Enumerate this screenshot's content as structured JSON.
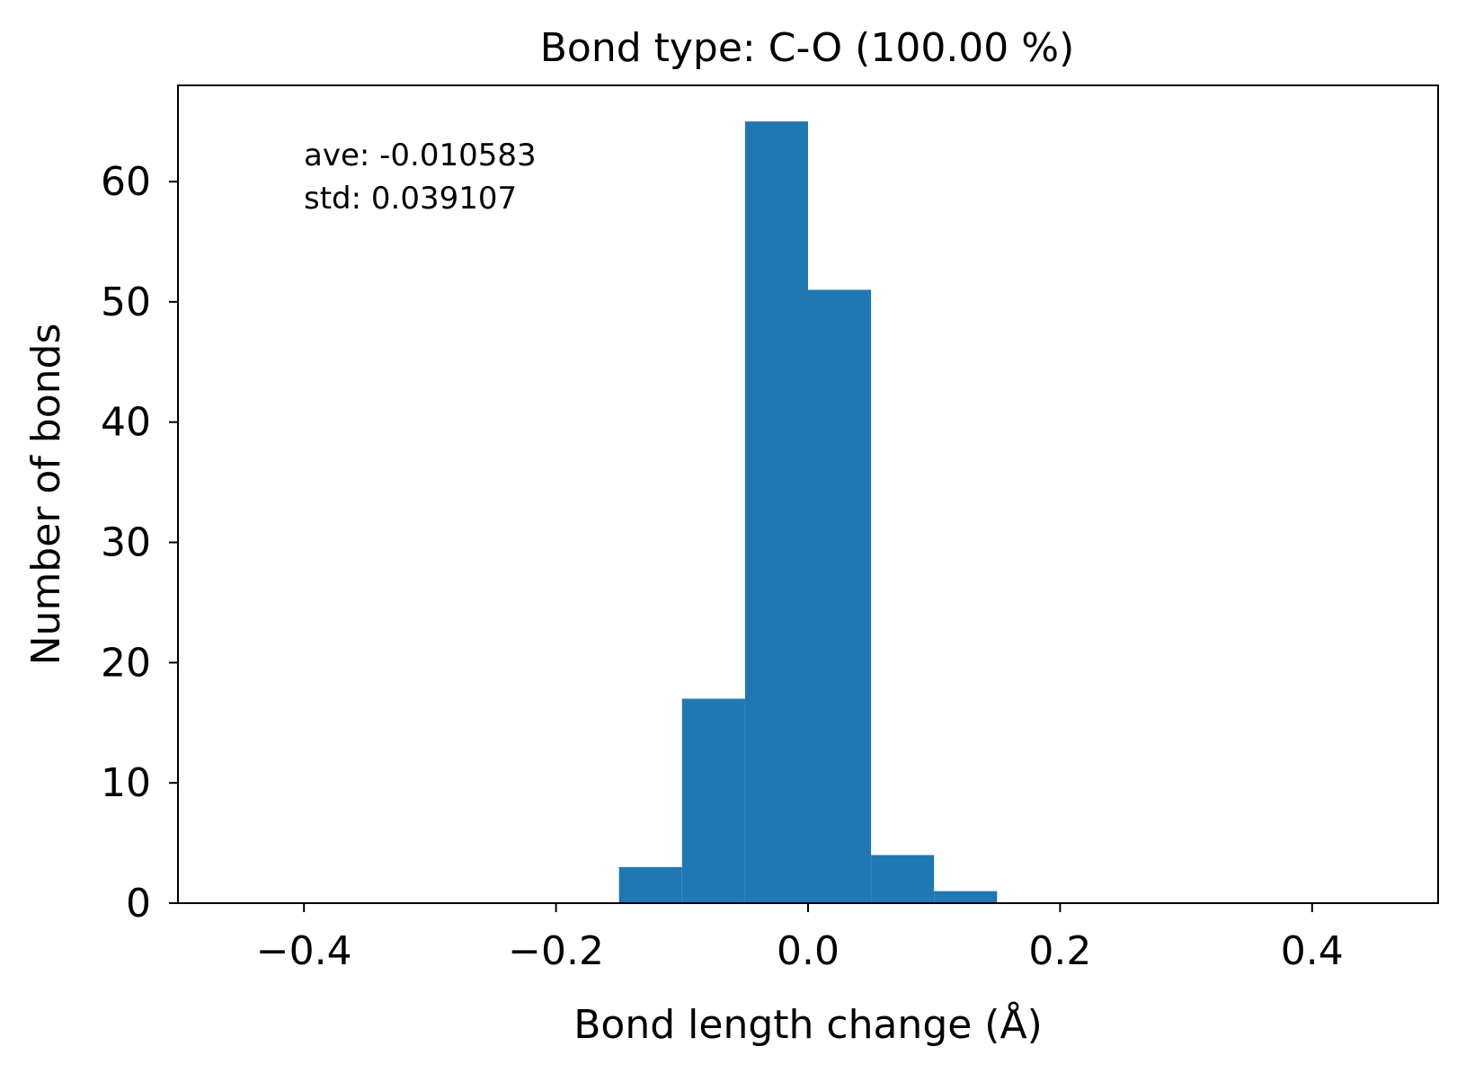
{
  "chart_data": {
    "type": "bar",
    "title": "Bond type: C-O (100.00 %)",
    "xlabel": "Bond length change (Å)",
    "ylabel": "Number of bonds",
    "xlim": [
      -0.5,
      0.5
    ],
    "ylim": [
      0,
      68
    ],
    "xticks": [
      -0.4,
      -0.2,
      0.0,
      0.2,
      0.4
    ],
    "xtick_labels": [
      "−0.4",
      "−0.2",
      "0.0",
      "0.2",
      "0.4"
    ],
    "yticks": [
      0,
      10,
      20,
      30,
      40,
      50,
      60
    ],
    "ytick_labels": [
      "0",
      "10",
      "20",
      "30",
      "40",
      "50",
      "60"
    ],
    "grid": false,
    "bar_color": "#2077b4",
    "bins": [
      {
        "x0": -0.15,
        "x1": -0.1,
        "count": 3
      },
      {
        "x0": -0.1,
        "x1": -0.05,
        "count": 17
      },
      {
        "x0": -0.05,
        "x1": 0.0,
        "count": 65
      },
      {
        "x0": 0.0,
        "x1": 0.05,
        "count": 51
      },
      {
        "x0": 0.05,
        "x1": 0.1,
        "count": 4
      },
      {
        "x0": 0.1,
        "x1": 0.15,
        "count": 1
      }
    ],
    "annotations": [
      "ave: -0.010583",
      "std: 0.039107"
    ]
  }
}
